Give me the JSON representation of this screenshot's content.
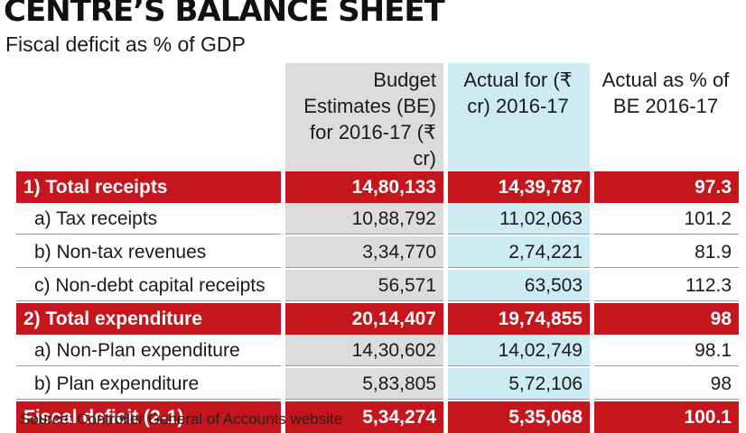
{
  "chart_data": {
    "type": "table",
    "title": "CENTRE’S BALANCE SHEET",
    "subtitle": "Fiscal deficit as % of GDP",
    "columns": [
      "",
      "Budget Estimates (BE) for 2016-17 (₹ cr)",
      "Actual for (₹ cr) 2016-17",
      "Actual as % of BE 2016-17"
    ],
    "rows": [
      {
        "label": "1) Total receipts",
        "be": "14,80,133",
        "actual": "14,39,787",
        "pct": "97.3",
        "kind": "total"
      },
      {
        "label": "a) Tax receipts",
        "be": "10,88,792",
        "actual": "11,02,063",
        "pct": "101.2",
        "kind": "sub"
      },
      {
        "label": "b) Non-tax revenues",
        "be": "3,34,770",
        "actual": "2,74,221",
        "pct": "81.9",
        "kind": "sub"
      },
      {
        "label": "c) Non-debt capital receipts",
        "be": "56,571",
        "actual": "63,503",
        "pct": "112.3",
        "kind": "sub"
      },
      {
        "label": "2) Total expenditure",
        "be": "20,14,407",
        "actual": "19,74,855",
        "pct": "98",
        "kind": "total"
      },
      {
        "label": "a) Non-Plan expenditure",
        "be": "14,30,602",
        "actual": "14,02,749",
        "pct": "98.1",
        "kind": "sub"
      },
      {
        "label": "b) Plan expenditure",
        "be": "5,83,805",
        "actual": "5,72,106",
        "pct": "98",
        "kind": "sub"
      },
      {
        "label": "Fiscal deficit (2-1)",
        "be": "5,34,274",
        "actual": "5,35,068",
        "pct": "100.1",
        "kind": "total"
      }
    ],
    "source": "Source: Controller General of Accounts website"
  }
}
